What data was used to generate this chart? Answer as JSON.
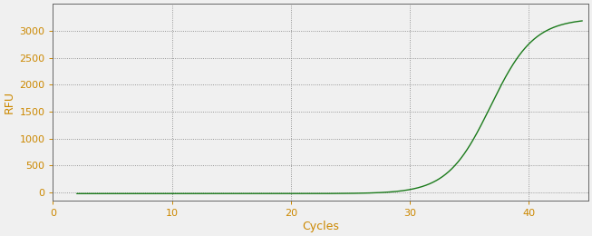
{
  "title": "",
  "xlabel": "Cycles",
  "ylabel": "RFU",
  "xlim": [
    0,
    45
  ],
  "ylim": [
    -150,
    3500
  ],
  "xticks": [
    0,
    10,
    20,
    30,
    40
  ],
  "yticks": [
    0,
    500,
    1000,
    1500,
    2000,
    2500,
    3000
  ],
  "line_color": "#1a7a1a",
  "line_width": 1.0,
  "background_color": "#f0f0f0",
  "plot_bg_color": "#f0f0f0",
  "grid_color": "#808080",
  "sigmoid_L": 3250,
  "sigmoid_k": 0.55,
  "sigmoid_x0": 36.8,
  "x_start": 2,
  "x_end": 44.5,
  "label_color": "#cc8800",
  "tick_color": "#cc8800",
  "spine_color": "#666666",
  "figwidth": 6.53,
  "figheight": 2.6,
  "dpi": 100
}
